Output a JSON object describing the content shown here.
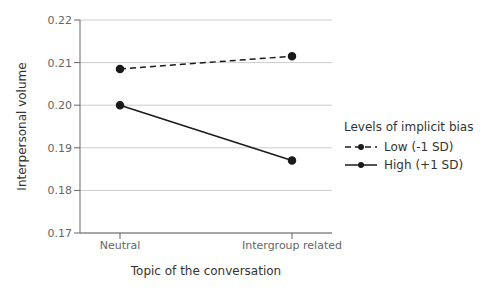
{
  "chart_data": {
    "type": "line",
    "categories": [
      "Neutral",
      "Intergroup related"
    ],
    "series": [
      {
        "name": "Low (-1 SD)",
        "color": "#1a1a1a",
        "values": [
          0.2085,
          0.2115
        ],
        "line_style": "dashed",
        "marker": "circle"
      },
      {
        "name": "High (+1 SD)",
        "color": "#1a1a1a",
        "values": [
          0.2,
          0.187
        ],
        "line_style": "solid",
        "marker": "circle"
      }
    ],
    "x_label": "Topic of the conversation",
    "y_label": "Interpersonal volume",
    "legend_title": "Levels of implicit bias",
    "ylim": [
      0.17,
      0.22
    ],
    "yticks": [
      0.17,
      0.18,
      0.19,
      {
        "value": 0.2,
        "label": "0.20"
      },
      0.21,
      0.22
    ],
    "grid": "y",
    "legend": "right"
  }
}
